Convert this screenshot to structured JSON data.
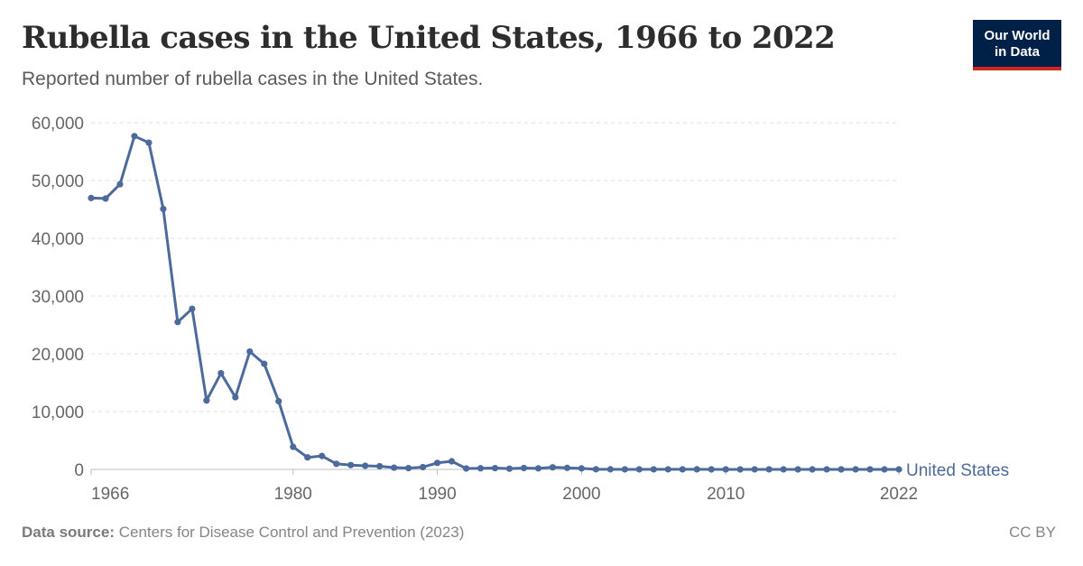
{
  "header": {
    "title": "Rubella cases in the United States, 1966 to 2022",
    "subtitle": "Reported number of rubella cases in the United States."
  },
  "logo": {
    "line1": "Our World",
    "line2": "in Data"
  },
  "footer": {
    "source_label": "Data source:",
    "source_text": "Centers for Disease Control and Prevention (2023)",
    "license": "CC BY"
  },
  "colors": {
    "series": "#4c6a9c",
    "grid": "#dddddd",
    "text": "#666666",
    "logo_bg": "#002147",
    "logo_accent": "#ce261e"
  },
  "chart_data": {
    "type": "line",
    "title": "Rubella cases in the United States, 1966 to 2022",
    "subtitle": "Reported number of rubella cases in the United States.",
    "x_ticks": [
      1966,
      1980,
      1990,
      2000,
      2010,
      2022
    ],
    "y_ticks": [
      0,
      10000,
      20000,
      30000,
      40000,
      50000,
      60000
    ],
    "y_tick_labels": [
      "0",
      "10,000",
      "20,000",
      "30,000",
      "40,000",
      "50,000",
      "60,000"
    ],
    "xlim": [
      1966,
      2022
    ],
    "ylim": [
      0,
      60000
    ],
    "grid": "horizontal dashed",
    "legend": "inline at line end",
    "series": [
      {
        "name": "United States",
        "x": [
          1966,
          1967,
          1968,
          1969,
          1970,
          1971,
          1972,
          1973,
          1974,
          1975,
          1976,
          1977,
          1978,
          1979,
          1980,
          1981,
          1982,
          1983,
          1984,
          1985,
          1986,
          1987,
          1988,
          1989,
          1990,
          1991,
          1992,
          1993,
          1994,
          1995,
          1996,
          1997,
          1998,
          1999,
          2000,
          2001,
          2002,
          2003,
          2004,
          2005,
          2006,
          2007,
          2008,
          2009,
          2010,
          2011,
          2012,
          2013,
          2014,
          2015,
          2016,
          2017,
          2018,
          2019,
          2020,
          2021,
          2022
        ],
        "y": [
          46975,
          46888,
          49371,
          57686,
          56552,
          45086,
          25507,
          27804,
          11917,
          16652,
          12491,
          20395,
          18269,
          11795,
          3904,
          2077,
          2325,
          970,
          752,
          630,
          551,
          306,
          225,
          396,
          1125,
          1401,
          160,
          192,
          227,
          128,
          238,
          181,
          364,
          267,
          176,
          23,
          18,
          7,
          10,
          11,
          11,
          12,
          16,
          3,
          5,
          4,
          9,
          9,
          6,
          5,
          1,
          7,
          4,
          6,
          6,
          0,
          1
        ]
      }
    ]
  }
}
